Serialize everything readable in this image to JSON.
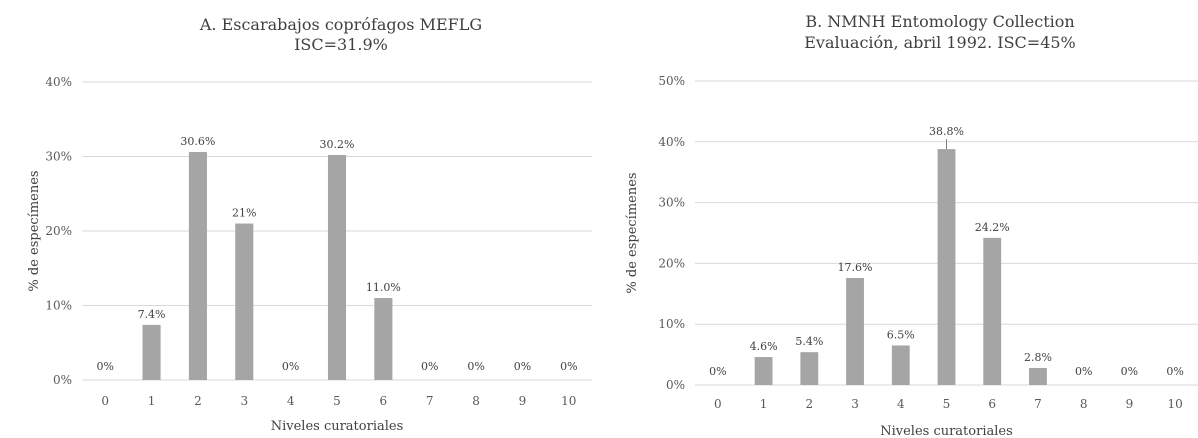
{
  "chart_data": [
    {
      "type": "bar",
      "title": "A. Escarabajos coprófagos MEFLG",
      "subtitle": "ISC=31.9%",
      "xlabel": "Niveles curatoriales",
      "ylabel": "% de especímenes",
      "ylim": [
        0,
        40
      ],
      "ytick_step": 10,
      "grid": true,
      "bar_color": "#a5a5a5",
      "categories": [
        "0",
        "1",
        "2",
        "3",
        "4",
        "5",
        "6",
        "7",
        "8",
        "9",
        "10"
      ],
      "values": [
        0,
        7.4,
        30.6,
        21,
        0,
        30.2,
        11.0,
        0,
        0,
        0,
        0
      ],
      "labels": [
        "0%",
        "7.4%",
        "30.6%",
        "21%",
        "0%",
        "30.2%",
        "11.0%",
        "0%",
        "0%",
        "0%",
        "0%"
      ]
    },
    {
      "type": "bar",
      "title": "B. NMNH Entomology Collection",
      "subtitle": "Evaluación, abril 1992. ISC=45%",
      "xlabel": "Niveles curatoriales",
      "ylabel": "% de especímenes",
      "ylim": [
        0,
        50
      ],
      "ytick_step": 10,
      "grid": true,
      "bar_color": "#a5a5a5",
      "categories": [
        "0",
        "1",
        "2",
        "3",
        "4",
        "5",
        "6",
        "7",
        "8",
        "9",
        "10"
      ],
      "values": [
        0,
        4.6,
        5.4,
        17.6,
        6.5,
        38.8,
        24.2,
        2.8,
        0,
        0,
        0
      ],
      "labels": [
        "0%",
        "4.6%",
        "5.4%",
        "17.6%",
        "6.5%",
        "38.8%",
        "24.2%",
        "2.8%",
        "0%",
        "0%",
        "0%"
      ]
    }
  ]
}
